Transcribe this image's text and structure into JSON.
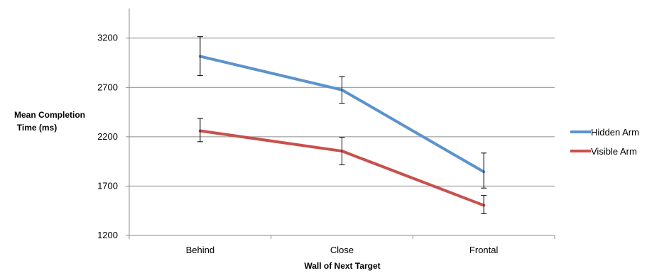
{
  "chart_data": {
    "type": "line",
    "categories": [
      "Behind",
      "Close",
      "Frontal"
    ],
    "series": [
      {
        "name": "Hidden Arm",
        "color": "#5B93CC",
        "values": [
          3015,
          2675,
          1845
        ],
        "error_low": [
          2820,
          2540,
          1680
        ],
        "error_high": [
          3215,
          2810,
          2035
        ]
      },
      {
        "name": "Visible Arm",
        "color": "#C9504C",
        "values": [
          2260,
          2055,
          1505
        ],
        "error_low": [
          2150,
          1915,
          1420
        ],
        "error_high": [
          2385,
          2195,
          1605
        ]
      }
    ],
    "xlabel": "Wall of Next Target",
    "ylabel_lines": [
      "Mean Completion",
      "Time (ms)"
    ],
    "ylim": [
      1200,
      3500
    ],
    "yticks": [
      1200,
      1700,
      2200,
      2700,
      3200
    ],
    "grid": true,
    "legend_position": "right"
  }
}
